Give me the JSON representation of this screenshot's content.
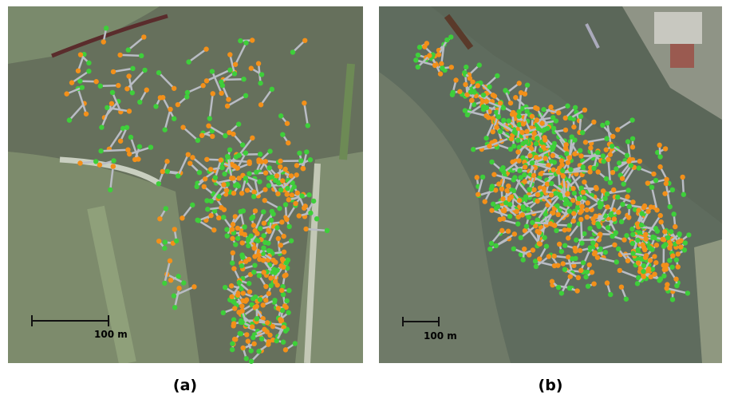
{
  "panels": [
    {
      "label": "(a)",
      "scale_label": "100 m"
    },
    {
      "label": "(b)",
      "scale_label": "100 m"
    }
  ]
}
